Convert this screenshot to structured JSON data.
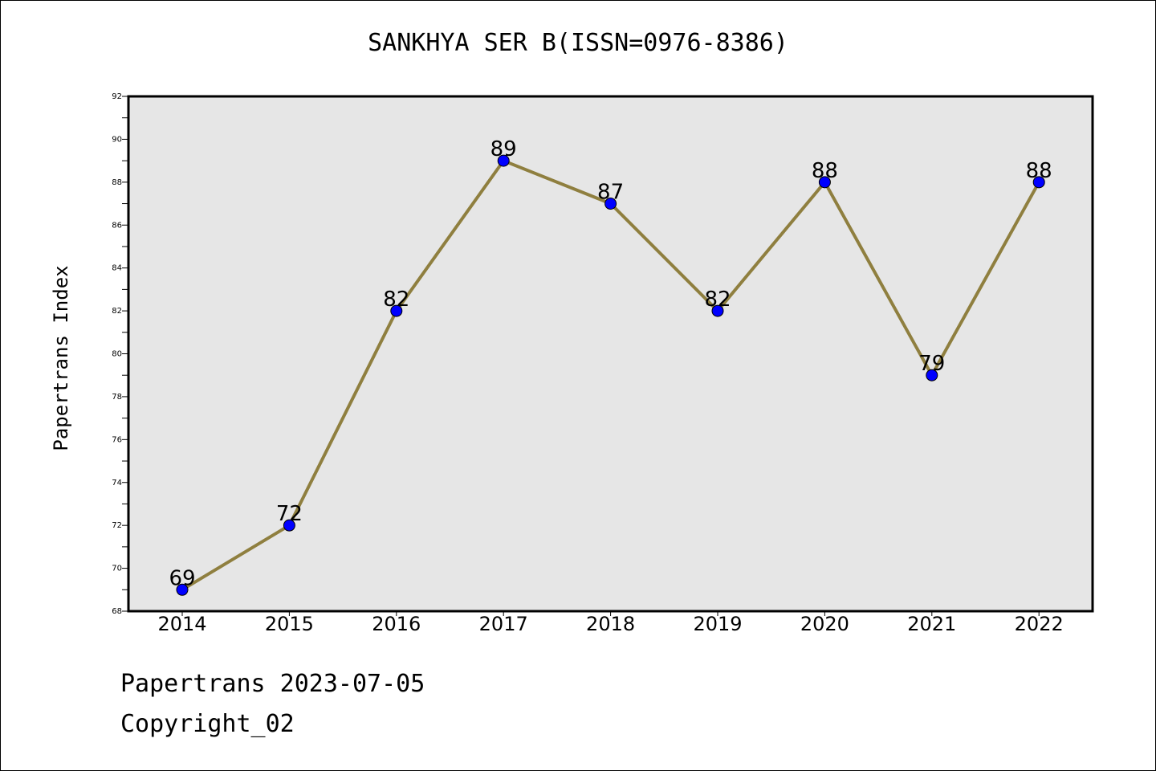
{
  "chart_data": {
    "type": "line",
    "title": "SANKHYA SER B(ISSN=0976-8386)",
    "xlabel": "",
    "ylabel": "Papertrans Index",
    "categories": [
      "2014",
      "2015",
      "2016",
      "2017",
      "2018",
      "2019",
      "2020",
      "2021",
      "2022"
    ],
    "series": [
      {
        "values": [
          69,
          72,
          82,
          89,
          87,
          82,
          88,
          79,
          88
        ]
      }
    ],
    "ylim": [
      68,
      92
    ],
    "yticks": [
      68,
      70,
      72,
      74,
      76,
      78,
      80,
      82,
      84,
      86,
      88,
      90,
      92
    ],
    "grid": false,
    "line_color": "#8f7f3f",
    "marker_color": "#0000ff",
    "plot_background": "#e6e6e6"
  },
  "footer": {
    "line1": "Papertrans 2023-07-05",
    "line2": "Copyright_02"
  }
}
